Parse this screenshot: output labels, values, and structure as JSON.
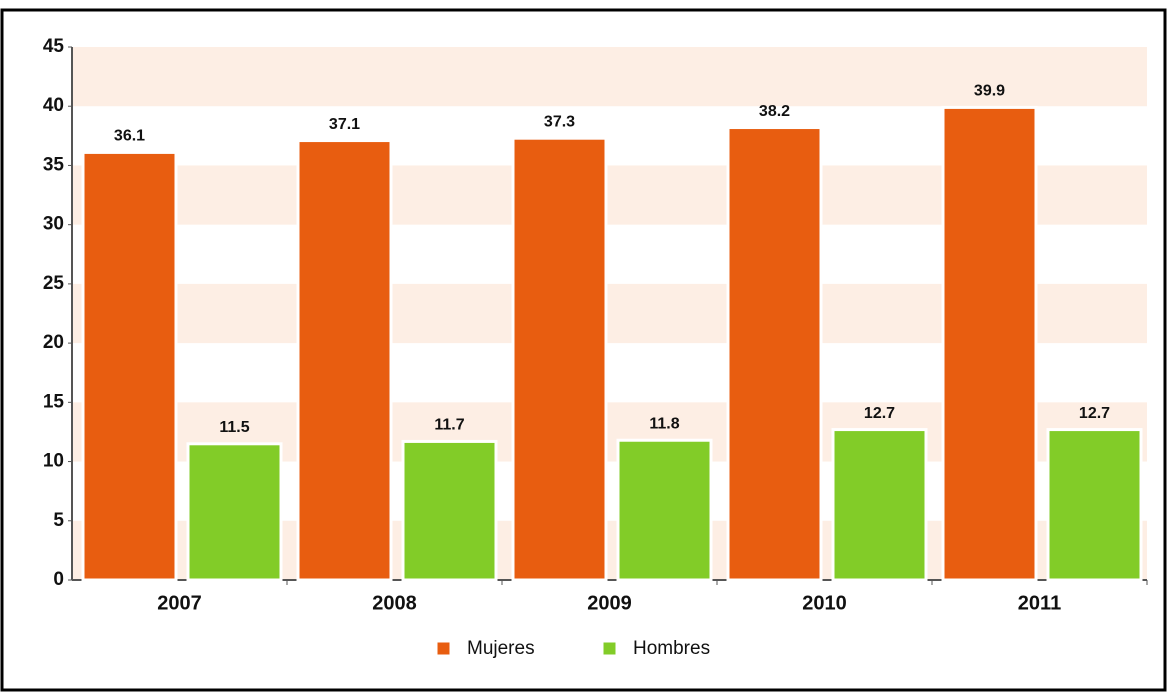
{
  "chart_data": {
    "type": "bar",
    "categories": [
      "2007",
      "2008",
      "2009",
      "2010",
      "2011"
    ],
    "series": [
      {
        "name": "Mujeres",
        "color": "#e85d10",
        "values": [
          36.1,
          37.1,
          37.3,
          38.2,
          39.9
        ]
      },
      {
        "name": "Hombres",
        "color": "#82cc28",
        "values": [
          11.5,
          11.7,
          11.8,
          12.7,
          12.7
        ]
      }
    ],
    "ylim": [
      0,
      45
    ],
    "yticks": [
      0,
      5,
      10,
      15,
      20,
      25,
      30,
      35,
      40,
      45
    ],
    "grid": true,
    "stripe_color": "#fdeee4",
    "legend": "bottom"
  }
}
